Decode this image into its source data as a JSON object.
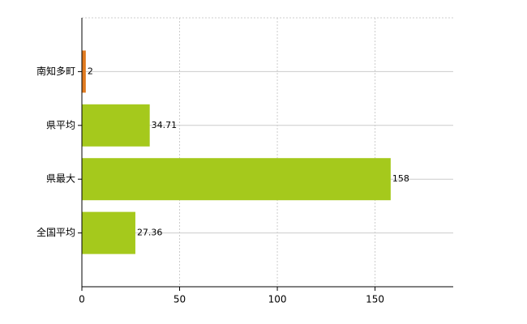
{
  "chart_data": {
    "type": "bar",
    "orientation": "horizontal",
    "categories": [
      "南知多町",
      "県平均",
      "県最大",
      "全国平均"
    ],
    "values": [
      2,
      34.71,
      158,
      27.36
    ],
    "colors": [
      "#e07a1f",
      "#a5c91c",
      "#a5c91c",
      "#a5c91c"
    ],
    "xlim": [
      0,
      190
    ],
    "xticks": [
      0,
      50,
      100,
      150
    ],
    "grid": true
  }
}
